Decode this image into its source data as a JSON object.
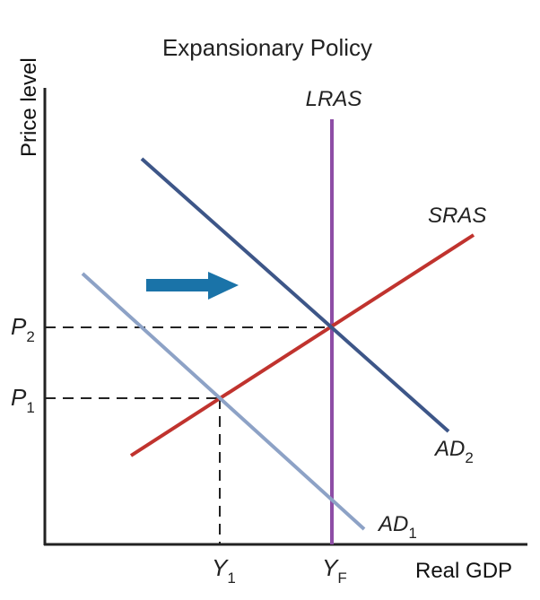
{
  "title": "Expansionary Policy",
  "axes": {
    "x_label": "Real GDP",
    "y_label": "Price level"
  },
  "curves": {
    "lras": {
      "label": "LRAS",
      "color": "#8e4ea6"
    },
    "sras": {
      "label": "SRAS",
      "color": "#c0332e"
    },
    "ad1": {
      "label": "AD",
      "subscript": "1",
      "color": "#8da2c6"
    },
    "ad2": {
      "label": "AD",
      "subscript": "2",
      "color": "#3d5688"
    }
  },
  "ticks": {
    "p1": {
      "label": "P",
      "subscript": "1"
    },
    "p2": {
      "label": "P",
      "subscript": "2"
    },
    "y1": {
      "label": "Y",
      "subscript": "1"
    },
    "yf": {
      "label": "Y",
      "subscript": "F"
    }
  },
  "shift_arrow": {
    "direction": "right",
    "color": "#1a73a8"
  }
}
